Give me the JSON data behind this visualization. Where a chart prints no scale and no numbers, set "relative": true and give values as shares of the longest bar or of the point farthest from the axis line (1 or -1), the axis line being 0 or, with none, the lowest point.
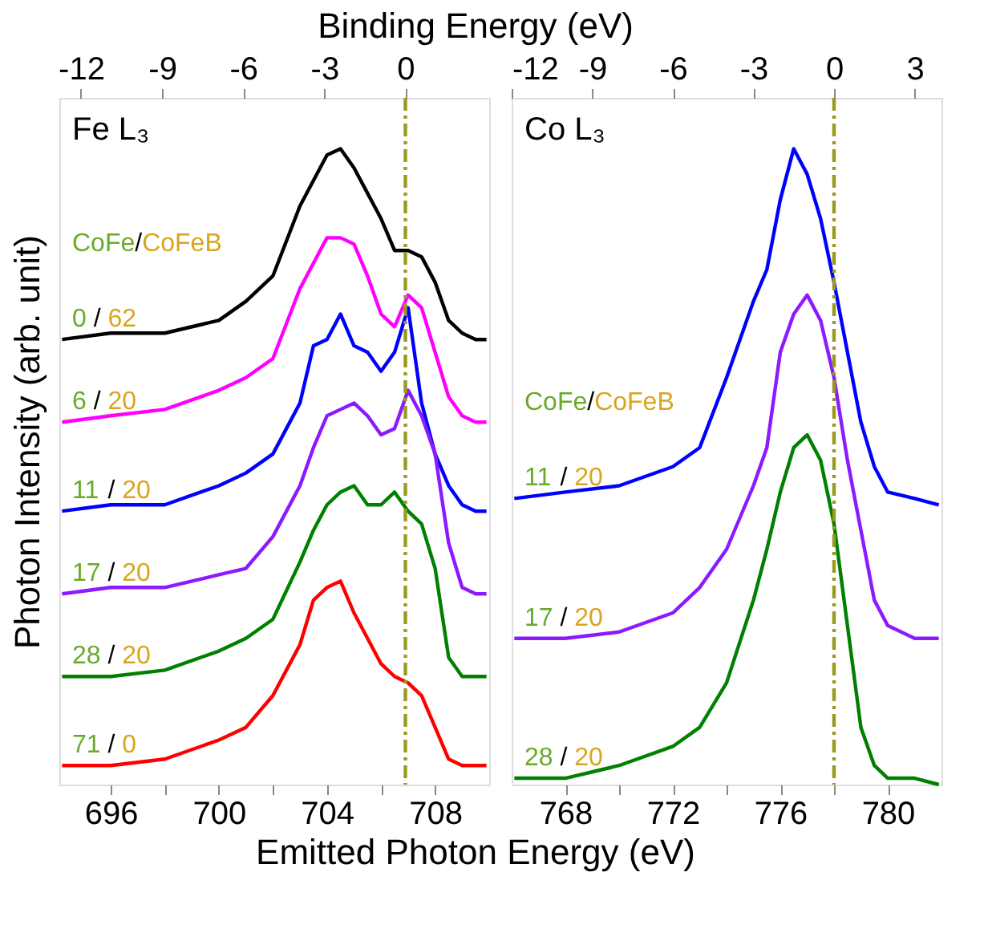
{
  "chart_data": [
    {
      "type": "line",
      "relative": true,
      "tick_labels": "x",
      "legend": false,
      "ylabel": "Photon Intensity (arb. unit)",
      "xlabel": "Emitted Photon Energy (eV)",
      "x2label": "Binding Energy (eV)",
      "legend_title": "CoFe/CoFeB",
      "annotations": [
        "Fe L₃"
      ],
      "xlim": [
        694.1,
        710
      ],
      "xticks": [
        696,
        {
          "value": 698,
          "label": null
        },
        700,
        {
          "value": 702,
          "label": null
        },
        704,
        {
          "value": 706,
          "label": null
        },
        708
      ],
      "x2lim": [
        -12.8,
        3.1
      ],
      "x2ticks": [
        -12,
        -9,
        -6,
        -3,
        0
      ],
      "ref_lines": [
        {
          "axis": "x2",
          "value": 0,
          "color": "#9a9a1e",
          "line_style": "dashed"
        }
      ],
      "x": [
        694.2,
        696,
        698,
        700,
        701,
        702,
        703,
        703.5,
        704,
        704.5,
        705,
        705.5,
        706,
        706.5,
        707,
        707.5,
        708,
        708.5,
        709,
        709.5,
        709.9
      ],
      "series": [
        {
          "name": "0 / 62",
          "color": "#000000",
          "values": [
            0.7,
            0.71,
            0.71,
            0.73,
            0.76,
            0.8,
            0.91,
            0.95,
            0.99,
            1.0,
            0.97,
            0.93,
            0.89,
            0.84,
            0.84,
            0.83,
            0.79,
            0.73,
            0.71,
            0.7,
            0.7
          ]
        },
        {
          "name": "6 / 20",
          "color": "#ff00ff",
          "values": [
            0.57,
            0.58,
            0.59,
            0.62,
            0.64,
            0.67,
            0.78,
            0.82,
            0.86,
            0.86,
            0.85,
            0.8,
            0.74,
            0.72,
            0.77,
            0.75,
            0.68,
            0.61,
            0.58,
            0.57,
            0.57
          ]
        },
        {
          "name": "11 / 20",
          "color": "#0000ff",
          "values": [
            0.43,
            0.44,
            0.44,
            0.47,
            0.49,
            0.52,
            0.6,
            0.69,
            0.7,
            0.74,
            0.69,
            0.68,
            0.65,
            0.68,
            0.75,
            0.6,
            0.52,
            0.47,
            0.44,
            0.43,
            0.43
          ]
        },
        {
          "name": "17 / 20",
          "color": "#8c1aff",
          "values": [
            0.3,
            0.31,
            0.31,
            0.33,
            0.34,
            0.39,
            0.47,
            0.53,
            0.58,
            0.59,
            0.6,
            0.58,
            0.55,
            0.56,
            0.62,
            0.58,
            0.52,
            0.38,
            0.31,
            0.3,
            0.3
          ]
        },
        {
          "name": "28 / 20",
          "color": "#008000",
          "values": [
            0.17,
            0.17,
            0.18,
            0.21,
            0.23,
            0.26,
            0.35,
            0.4,
            0.44,
            0.46,
            0.47,
            0.44,
            0.44,
            0.46,
            0.43,
            0.41,
            0.34,
            0.2,
            0.17,
            0.17,
            0.17
          ]
        },
        {
          "name": "71 / 0",
          "color": "#ff0000",
          "values": [
            0.03,
            0.03,
            0.04,
            0.07,
            0.09,
            0.14,
            0.22,
            0.29,
            0.31,
            0.32,
            0.27,
            0.23,
            0.19,
            0.17,
            0.16,
            0.14,
            0.09,
            0.04,
            0.03,
            0.03,
            0.03
          ]
        }
      ]
    },
    {
      "type": "line",
      "relative": true,
      "tick_labels": "x",
      "legend": false,
      "legend_title": "CoFe/CoFeB",
      "annotations": [
        "Co L₃"
      ],
      "xlim": [
        766,
        782
      ],
      "xticks": [
        768,
        {
          "value": 770,
          "label": null
        },
        772,
        {
          "value": 774,
          "label": null
        },
        776,
        {
          "value": 778,
          "label": null
        },
        780
      ],
      "x2lim": [
        -12,
        4
      ],
      "x2ticks": [
        -12,
        -9,
        -6,
        -3,
        0,
        3
      ],
      "ref_lines": [
        {
          "axis": "x2",
          "value": 0,
          "color": "#9a9a1e",
          "line_style": "dashed"
        }
      ],
      "x": [
        766.1,
        768,
        770,
        772,
        773,
        774,
        775,
        775.5,
        776,
        776.5,
        777,
        777.5,
        778,
        778.5,
        779,
        779.5,
        780,
        781,
        781.9
      ],
      "series": [
        {
          "name": "11 / 20",
          "color": "#0000ff",
          "values": [
            0.45,
            0.46,
            0.47,
            0.5,
            0.53,
            0.64,
            0.76,
            0.81,
            0.92,
            1.0,
            0.96,
            0.89,
            0.79,
            0.68,
            0.57,
            0.5,
            0.46,
            0.45,
            0.44
          ]
        },
        {
          "name": "17 / 20",
          "color": "#8c1aff",
          "values": [
            0.23,
            0.23,
            0.24,
            0.27,
            0.31,
            0.37,
            0.47,
            0.53,
            0.68,
            0.74,
            0.77,
            0.73,
            0.64,
            0.51,
            0.4,
            0.29,
            0.25,
            0.23,
            0.23
          ]
        },
        {
          "name": "28 / 20",
          "color": "#008000",
          "values": [
            0.01,
            0.01,
            0.03,
            0.06,
            0.09,
            0.16,
            0.29,
            0.37,
            0.46,
            0.53,
            0.55,
            0.51,
            0.41,
            0.25,
            0.09,
            0.03,
            0.01,
            0.01,
            0.0
          ]
        }
      ]
    }
  ]
}
